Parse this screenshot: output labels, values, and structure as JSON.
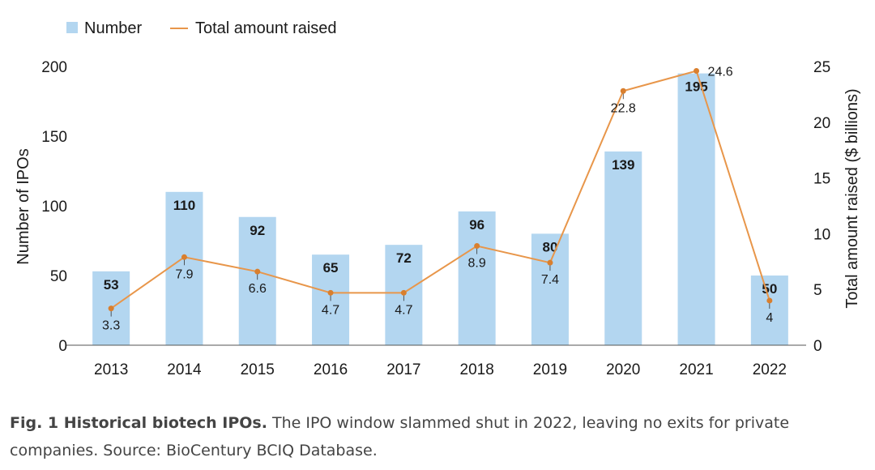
{
  "chart_data": {
    "type": "bar",
    "categories": [
      "2013",
      "2014",
      "2015",
      "2016",
      "2017",
      "2018",
      "2019",
      "2020",
      "2021",
      "2022"
    ],
    "series": [
      {
        "name": "Number",
        "type": "bar",
        "axis": "left",
        "color": "#b3d6f0",
        "values": [
          53,
          110,
          92,
          65,
          72,
          96,
          80,
          139,
          195,
          50
        ]
      },
      {
        "name": "Total amount raised",
        "type": "line",
        "axis": "right",
        "color": "#e8964a",
        "values": [
          3.3,
          7.9,
          6.6,
          4.7,
          4.7,
          8.9,
          7.4,
          22.8,
          24.6,
          4
        ]
      }
    ],
    "ylabel": "Number of IPOs",
    "y2label": "Total amount raised ($ billions)",
    "ylim": [
      0,
      200
    ],
    "y2lim": [
      0,
      25
    ],
    "yticks": [
      0,
      50,
      100,
      150,
      200
    ],
    "y2ticks": [
      0,
      5,
      10,
      15,
      20,
      25
    ],
    "legend_position": "top-left",
    "grid": false
  },
  "caption": {
    "title": "Fig. 1 Historical biotech IPOs.",
    "text": "The IPO window slammed shut in 2022, leaving no exits for private companies.",
    "source": "Source: BioCentury BCIQ Database."
  }
}
